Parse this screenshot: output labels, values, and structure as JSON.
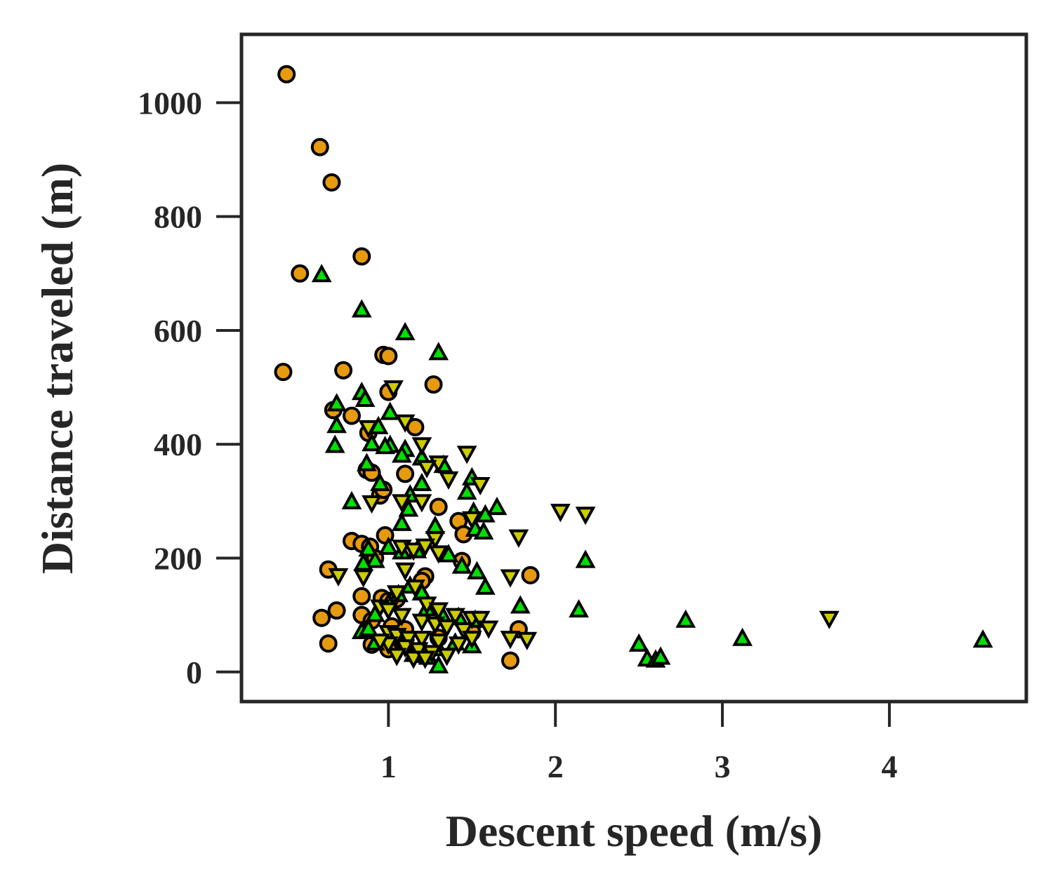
{
  "chart_data": {
    "type": "scatter",
    "xlabel": "Descent speed (m/s)",
    "ylabel": "Distance traveled (m)",
    "xlim": [
      0.12,
      4.82
    ],
    "ylim": [
      -52,
      1120
    ],
    "xticks": [
      1,
      2,
      3,
      4
    ],
    "yticks": [
      0,
      200,
      400,
      600,
      800,
      1000
    ],
    "grid": false,
    "legend": "none",
    "colors": {
      "orange": "#e69a0f",
      "green": "#00e000",
      "yellow": "#cccc00",
      "edge": "#000000",
      "axis": "#262626"
    },
    "series": [
      {
        "marker": "circle",
        "color": "#e69a0f",
        "points": [
          [
            0.39,
            1050
          ],
          [
            0.59,
            922
          ],
          [
            0.66,
            860
          ],
          [
            0.47,
            700
          ],
          [
            0.84,
            730
          ],
          [
            0.37,
            527
          ],
          [
            0.73,
            530
          ],
          [
            0.97,
            557
          ],
          [
            1.0,
            555
          ],
          [
            1.27,
            505
          ],
          [
            1.0,
            492
          ],
          [
            0.67,
            460
          ],
          [
            0.78,
            450
          ],
          [
            1.16,
            430
          ],
          [
            0.88,
            420
          ],
          [
            0.87,
            355
          ],
          [
            0.9,
            350
          ],
          [
            1.1,
            348
          ],
          [
            0.95,
            310
          ],
          [
            0.97,
            320
          ],
          [
            1.3,
            290
          ],
          [
            1.42,
            265
          ],
          [
            1.45,
            242
          ],
          [
            0.78,
            230
          ],
          [
            0.84,
            225
          ],
          [
            0.89,
            220
          ],
          [
            0.98,
            240
          ],
          [
            0.92,
            200
          ],
          [
            1.44,
            195
          ],
          [
            0.64,
            180
          ],
          [
            1.22,
            168
          ],
          [
            1.2,
            160
          ],
          [
            1.85,
            170
          ],
          [
            0.84,
            133
          ],
          [
            0.96,
            130
          ],
          [
            1.0,
            125
          ],
          [
            1.05,
            128
          ],
          [
            0.69,
            108
          ],
          [
            0.6,
            95
          ],
          [
            0.84,
            100
          ],
          [
            0.9,
            90
          ],
          [
            1.02,
            80
          ],
          [
            1.1,
            75
          ],
          [
            1.78,
            75
          ],
          [
            0.64,
            50
          ],
          [
            0.9,
            48
          ],
          [
            1.0,
            40
          ],
          [
            1.1,
            50
          ],
          [
            1.2,
            30
          ],
          [
            1.73,
            20
          ],
          [
            1.3,
            60
          ],
          [
            1.5,
            70
          ]
        ]
      },
      {
        "marker": "triangle-up",
        "color": "#00e000",
        "points": [
          [
            0.6,
            697
          ],
          [
            0.84,
            635
          ],
          [
            1.1,
            595
          ],
          [
            1.3,
            560
          ],
          [
            0.84,
            490
          ],
          [
            0.69,
            470
          ],
          [
            0.86,
            478
          ],
          [
            0.69,
            432
          ],
          [
            0.68,
            397
          ],
          [
            1.01,
            455
          ],
          [
            0.94,
            430
          ],
          [
            0.9,
            400
          ],
          [
            1.01,
            397
          ],
          [
            0.98,
            395
          ],
          [
            1.1,
            390
          ],
          [
            1.08,
            380
          ],
          [
            1.2,
            375
          ],
          [
            1.33,
            362
          ],
          [
            0.87,
            365
          ],
          [
            1.5,
            340
          ],
          [
            0.95,
            330
          ],
          [
            1.2,
            330
          ],
          [
            1.13,
            310
          ],
          [
            1.47,
            315
          ],
          [
            0.78,
            298
          ],
          [
            1.12,
            285
          ],
          [
            1.51,
            280
          ],
          [
            1.58,
            275
          ],
          [
            1.65,
            288
          ],
          [
            1.08,
            260
          ],
          [
            1.28,
            255
          ],
          [
            1.52,
            250
          ],
          [
            1.57,
            245
          ],
          [
            1.0,
            218
          ],
          [
            1.08,
            210
          ],
          [
            1.17,
            212
          ],
          [
            0.88,
            215
          ],
          [
            0.92,
            195
          ],
          [
            0.85,
            190
          ],
          [
            1.36,
            205
          ],
          [
            1.44,
            185
          ],
          [
            1.53,
            175
          ],
          [
            1.58,
            148
          ],
          [
            1.13,
            150
          ],
          [
            1.2,
            138
          ],
          [
            1.06,
            135
          ],
          [
            1.0,
            120
          ],
          [
            1.23,
            110
          ],
          [
            1.32,
            100
          ],
          [
            1.42,
            95
          ],
          [
            1.52,
            90
          ],
          [
            0.92,
            100
          ],
          [
            0.84,
            70
          ],
          [
            0.88,
            75
          ],
          [
            1.0,
            60
          ],
          [
            1.1,
            55
          ],
          [
            1.2,
            45
          ],
          [
            1.3,
            40
          ],
          [
            1.4,
            50
          ],
          [
            1.5,
            45
          ],
          [
            0.92,
            50
          ],
          [
            1.15,
            30
          ],
          [
            1.24,
            25
          ],
          [
            1.3,
            10
          ],
          [
            2.18,
            195
          ],
          [
            1.79,
            115
          ],
          [
            2.14,
            108
          ],
          [
            2.5,
            48
          ],
          [
            2.55,
            22
          ],
          [
            2.6,
            20
          ],
          [
            2.63,
            25
          ],
          [
            2.78,
            90
          ],
          [
            3.12,
            58
          ],
          [
            4.56,
            55
          ]
        ]
      },
      {
        "marker": "triangle-down",
        "color": "#cccc00",
        "points": [
          [
            1.03,
            500
          ],
          [
            1.1,
            440
          ],
          [
            0.88,
            430
          ],
          [
            1.2,
            400
          ],
          [
            1.3,
            368
          ],
          [
            1.47,
            385
          ],
          [
            1.23,
            360
          ],
          [
            1.36,
            340
          ],
          [
            1.55,
            330
          ],
          [
            1.2,
            300
          ],
          [
            0.9,
            298
          ],
          [
            1.08,
            300
          ],
          [
            1.5,
            270
          ],
          [
            2.03,
            283
          ],
          [
            2.18,
            278
          ],
          [
            1.78,
            238
          ],
          [
            1.28,
            235
          ],
          [
            1.08,
            220
          ],
          [
            1.15,
            215
          ],
          [
            1.22,
            222
          ],
          [
            1.3,
            210
          ],
          [
            0.7,
            170
          ],
          [
            0.85,
            168
          ],
          [
            1.73,
            168
          ],
          [
            1.1,
            180
          ],
          [
            1.16,
            150
          ],
          [
            1.05,
            140
          ],
          [
            1.23,
            120
          ],
          [
            1.3,
            110
          ],
          [
            1.4,
            100
          ],
          [
            1.5,
            95
          ],
          [
            1.55,
            95
          ],
          [
            0.95,
            115
          ],
          [
            1.0,
            110
          ],
          [
            1.08,
            100
          ],
          [
            1.2,
            90
          ],
          [
            1.28,
            85
          ],
          [
            1.35,
            80
          ],
          [
            1.45,
            75
          ],
          [
            1.6,
            78
          ],
          [
            1.0,
            70
          ],
          [
            1.05,
            65
          ],
          [
            1.12,
            60
          ],
          [
            1.2,
            60
          ],
          [
            1.3,
            55
          ],
          [
            1.42,
            50
          ],
          [
            1.5,
            60
          ],
          [
            1.73,
            60
          ],
          [
            1.83,
            58
          ],
          [
            1.1,
            45
          ],
          [
            1.18,
            40
          ],
          [
            1.26,
            35
          ],
          [
            1.35,
            30
          ],
          [
            1.05,
            30
          ],
          [
            1.15,
            25
          ],
          [
            1.22,
            25
          ],
          [
            1.0,
            50
          ],
          [
            0.95,
            55
          ],
          [
            3.64,
            95
          ]
        ]
      }
    ]
  }
}
